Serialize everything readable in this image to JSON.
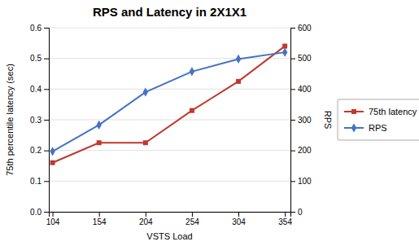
{
  "chart_data": {
    "type": "line",
    "title": "RPS and Latency in 2X1X1",
    "xlabel": "VSTS Load",
    "ylabel": "75th percentile latency (sec)",
    "y2label": "RPS",
    "x": [
      104,
      154,
      204,
      254,
      304,
      354
    ],
    "xlim": [
      100,
      360
    ],
    "xticks": [
      104,
      154,
      204,
      254,
      304,
      354
    ],
    "ylim": [
      0,
      0.6
    ],
    "yticks": [
      {
        "value": 0,
        "label": "0.0"
      },
      0.1,
      0.2,
      0.3,
      0.4,
      0.5,
      0.6
    ],
    "y2lim": [
      0,
      600
    ],
    "y2ticks": [
      0,
      100,
      200,
      300,
      400,
      500,
      600
    ],
    "grid": true,
    "legend": "right",
    "series": [
      {
        "name": "75th latency",
        "color": "#C0392B",
        "marker": "square",
        "values": [
          0.16,
          0.225,
          0.225,
          0.33,
          0.425,
          0.54
        ]
      },
      {
        "name": "RPS",
        "color": "#4472C4",
        "marker": "diamond",
        "axis": "y2",
        "values": [
          197,
          283,
          390,
          457,
          498,
          520
        ]
      }
    ]
  }
}
